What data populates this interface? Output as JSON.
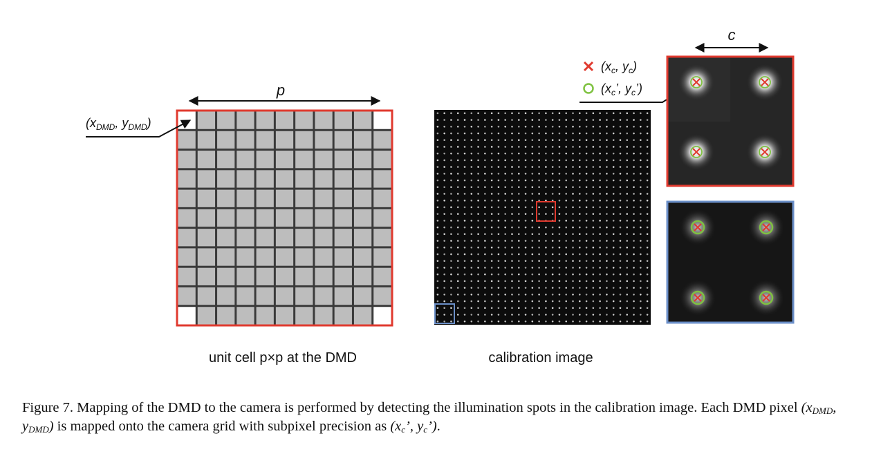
{
  "panels": {
    "unit_cell": {
      "caption": "unit cell p×p at the DMD",
      "dimension_label": "p",
      "grid_size": 11,
      "pointer_label": {
        "prefix": "(x",
        "sub1": "DMD",
        "mid": ", y",
        "sub2": "DMD",
        "suffix": ")"
      }
    },
    "calibration_image": {
      "caption": "calibration image",
      "spot_rows": 32,
      "spot_cols": 32
    },
    "zoom_red": {
      "dimension_label": "c"
    },
    "zoom_blue": {}
  },
  "legend": {
    "detected": {
      "prefix": "(x",
      "sub1": "c",
      "mid": ", y",
      "sub2": "c",
      "suffix": ")"
    },
    "mapped": {
      "prefix": "(x",
      "sub1": "c",
      "mid": "’, y",
      "sub2": "c",
      "suffix": "’)"
    }
  },
  "colors": {
    "red_frame": "#e03a2f",
    "blue_frame": "#6b8fc8",
    "cross": "#e03a2f",
    "circle": "#7fc241",
    "cell_gray": "#bdbdbd"
  },
  "caption": {
    "part1": "Figure 7. Mapping of the DMD to the camera is performed by detecting the illumination spots in the calibration image. Each DMD pixel ",
    "dmd_x": "x",
    "dmd_x_sub": "DMD",
    "dmd_sep": ", y",
    "dmd_y_sub": "DMD",
    "part2": " is mapped onto the camera grid with subpixel precision as ",
    "cam": "(x",
    "cam_x_sub": "c",
    "cam_sep": "’, y",
    "cam_y_sub": "c",
    "cam_end": "’)",
    "part3": "."
  }
}
